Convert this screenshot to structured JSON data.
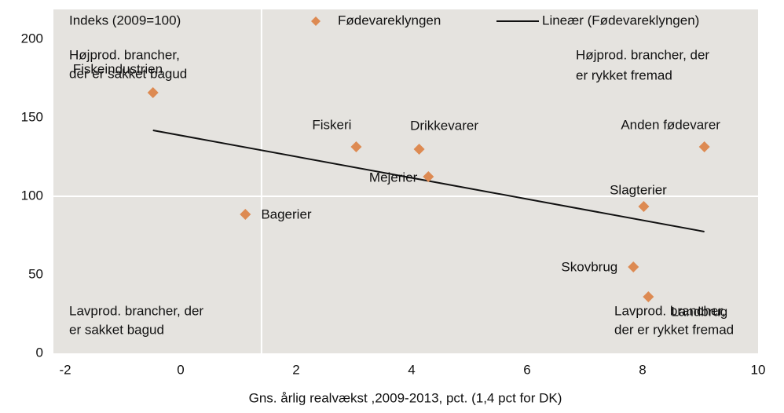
{
  "chart_data": {
    "type": "scatter",
    "y_label": "Indeks (2009=100)",
    "x_label": "Gns. årlig realvækst ,2009-2013, pct. (1,4 pct for DK)",
    "xlim": [
      -2,
      10
    ],
    "xticks": [
      -2,
      0,
      2,
      4,
      6,
      8,
      10
    ],
    "ylim": [
      0,
      200
    ],
    "yticks": [
      0,
      50,
      100,
      150,
      200
    ],
    "reference_x": 1.4,
    "reference_y": 100,
    "series": [
      {
        "name": "Fødevareklyngen",
        "color": "#dd8a52",
        "labels": [
          "Fiskeindustrien",
          "Fiskeri",
          "Drikkevarer",
          "Mejerier",
          "Anden fødevarer",
          "Slagterier",
          "Bagerier",
          "Skovbrug",
          "Landbrug"
        ],
        "x": [
          -0.48,
          3.04,
          4.13,
          4.29,
          9.07,
          8.02,
          1.12,
          7.84,
          8.1
        ],
        "values": [
          166,
          131.5,
          130,
          112.5,
          131.5,
          93.5,
          88.5,
          55,
          36
        ]
      }
    ],
    "trendline": {
      "name": "Lineær (Fødevareklyngen)",
      "color": "#111111",
      "x": [
        -0.48,
        9.07
      ],
      "values": [
        142,
        77.5
      ]
    },
    "quadrant_labels": [
      [
        "Højprod. brancher,",
        "der er sakket bagud"
      ],
      [
        "Højprod. brancher, der",
        "er rykket fremad"
      ],
      [
        "Lavprod. brancher, der",
        "er sakket bagud"
      ],
      [
        "Lavprod. brancher,",
        "der er rykket fremad"
      ]
    ],
    "legend": "top"
  }
}
